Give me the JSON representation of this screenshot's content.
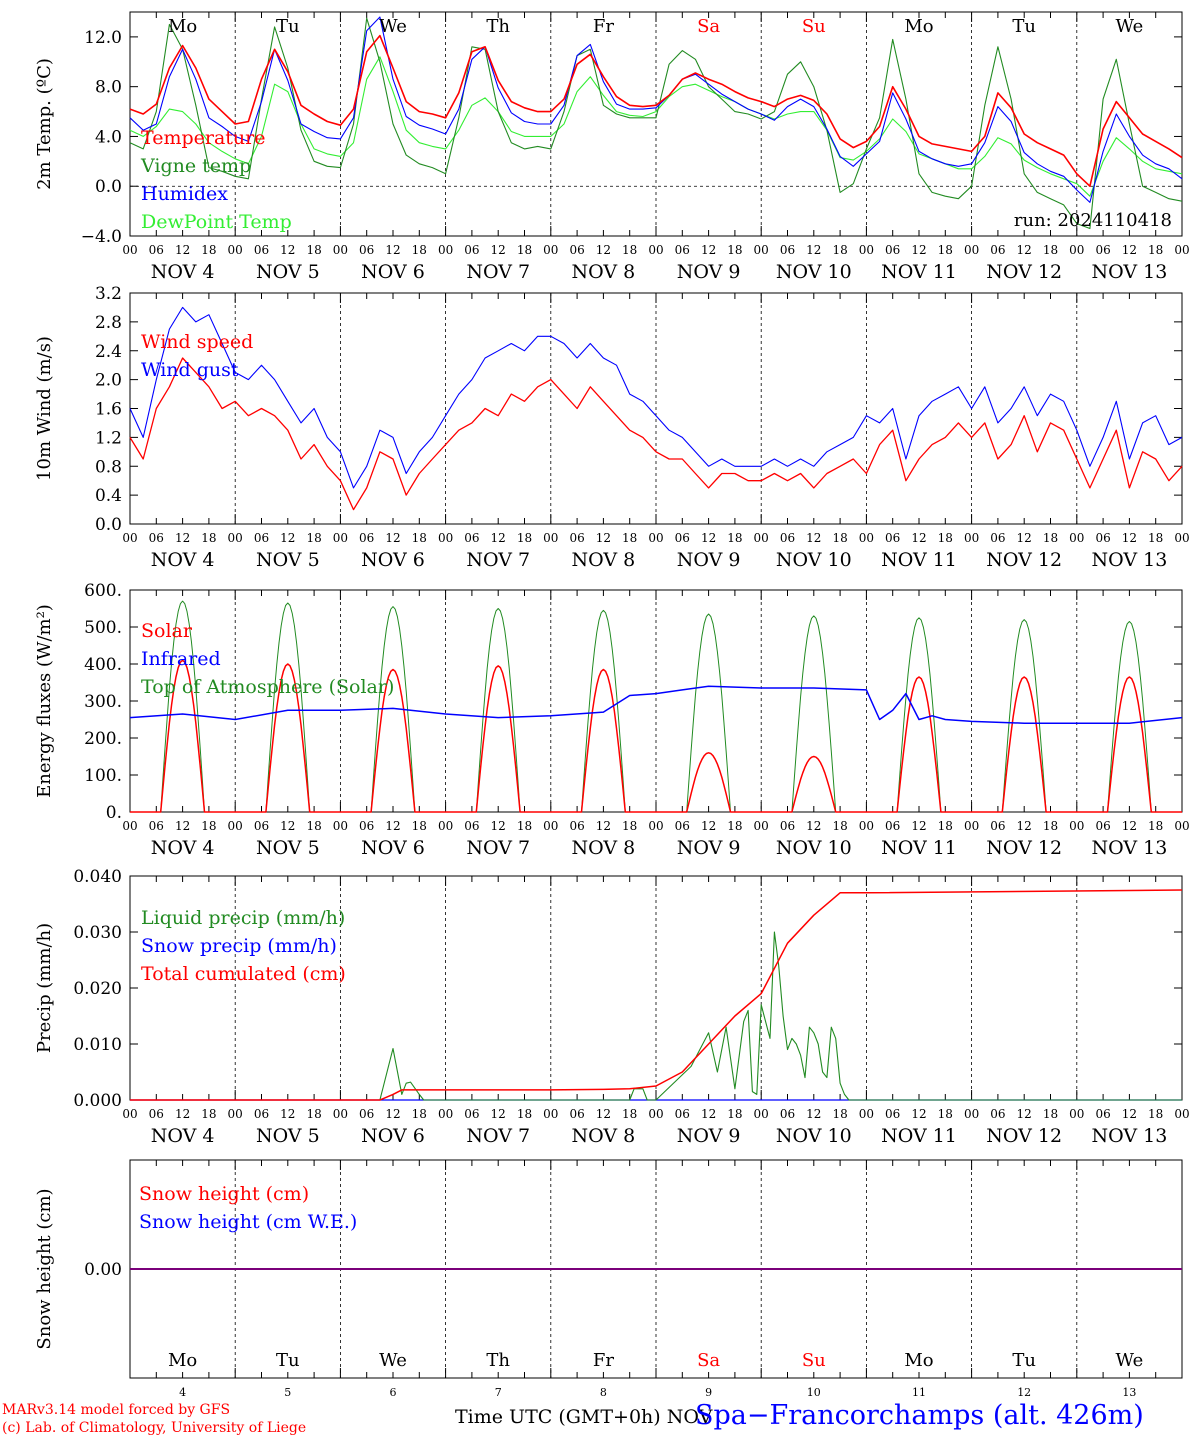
{
  "colors": {
    "red": "#ff0000",
    "green": "#228b22",
    "blue": "#0000ff",
    "light_green": "#33ee33",
    "purple": "#7a007a"
  },
  "days": [
    {
      "name": "Mo",
      "date": "NOV  4",
      "num": "4",
      "weekend": false
    },
    {
      "name": "Tu",
      "date": "NOV  5",
      "num": "5",
      "weekend": false
    },
    {
      "name": "We",
      "date": "NOV  6",
      "num": "6",
      "weekend": false
    },
    {
      "name": "Th",
      "date": "NOV  7",
      "num": "7",
      "weekend": false
    },
    {
      "name": "Fr",
      "date": "NOV  8",
      "num": "8",
      "weekend": false
    },
    {
      "name": "Sa",
      "date": "NOV  9",
      "num": "9",
      "weekend": true
    },
    {
      "name": "Su",
      "date": "NOV 10",
      "num": "10",
      "weekend": true
    },
    {
      "name": "Mo",
      "date": "NOV 11",
      "num": "11",
      "weekend": false
    },
    {
      "name": "Tu",
      "date": "NOV 12",
      "num": "12",
      "weekend": false
    },
    {
      "name": "We",
      "date": "NOV 13",
      "num": "13",
      "weekend": false
    }
  ],
  "hour_ticks": [
    "00",
    "06",
    "12",
    "18"
  ],
  "run_label": "run: 2024110418",
  "x_axis_label": "Time UTC (GMT+0h) NOV",
  "station": "Spa−Francorchamps (alt. 426m)",
  "credit_line1": "MARv3.14 model forced by GFS",
  "credit_line2": "(c) Lab. of Climatology, University of Liege",
  "chart_data": [
    {
      "type": "line",
      "ylabel": "2m Temp. (ºC)",
      "ylim": [
        -4,
        14
      ],
      "yticks": [
        "−4.0",
        "0.0",
        "4.0",
        "8.0",
        "12.0"
      ],
      "yticks_values": [
        -4,
        0,
        4,
        8,
        12
      ],
      "zero_line": true,
      "x_hours_since_nov4_00": [
        0,
        3,
        6,
        9,
        12,
        15,
        18,
        21,
        24,
        27,
        30,
        33,
        36,
        39,
        42,
        45,
        48,
        51,
        54,
        57,
        60,
        63,
        66,
        69,
        72,
        75,
        78,
        81,
        84,
        87,
        90,
        93,
        96,
        99,
        102,
        105,
        108,
        111,
        114,
        117,
        120,
        123,
        126,
        129,
        132,
        135,
        138,
        141,
        144,
        147,
        150,
        153,
        156,
        159,
        162,
        165,
        168,
        171,
        174,
        177,
        180,
        183,
        186,
        189,
        192,
        195,
        198,
        201,
        204,
        207,
        210,
        213,
        216,
        219,
        222,
        225,
        228,
        231,
        234,
        237,
        240
      ],
      "series": [
        {
          "name": "Temperature",
          "color_key": "red",
          "values": [
            6.2,
            5.8,
            6.6,
            9.5,
            11.3,
            9.5,
            7.0,
            6.0,
            5.0,
            5.2,
            8.6,
            11.0,
            9.2,
            6.5,
            5.8,
            5.2,
            4.9,
            6.2,
            10.8,
            12.1,
            9.5,
            6.8,
            6.0,
            5.8,
            5.5,
            7.5,
            10.8,
            11.2,
            8.5,
            6.8,
            6.3,
            6.0,
            6.0,
            7.0,
            9.8,
            10.6,
            8.8,
            7.2,
            6.5,
            6.4,
            6.5,
            7.3,
            8.6,
            9.1,
            8.6,
            8.2,
            7.6,
            7.1,
            6.8,
            6.4,
            7.0,
            7.3,
            6.9,
            5.8,
            3.8,
            3.1,
            3.6,
            4.8,
            8.0,
            6.2,
            4.0,
            3.4,
            3.2,
            3.0,
            2.8,
            4.0,
            7.5,
            6.3,
            4.2,
            3.5,
            3.0,
            2.5,
            1.0,
            0.0,
            4.6,
            6.8,
            5.5,
            4.2,
            3.6,
            3.0,
            2.3
          ]
        },
        {
          "name": "Vigne temp",
          "color_key": "green",
          "values": [
            3.5,
            3.0,
            6.0,
            13.0,
            11.0,
            6.5,
            1.5,
            1.2,
            0.8,
            0.6,
            7.0,
            12.8,
            9.5,
            4.5,
            2.0,
            1.6,
            1.5,
            5.0,
            13.5,
            10.0,
            5.0,
            2.5,
            1.8,
            1.5,
            1.0,
            5.5,
            11.2,
            11.0,
            6.0,
            3.5,
            3.0,
            3.2,
            3.0,
            6.0,
            10.5,
            11.0,
            6.5,
            5.8,
            5.5,
            5.5,
            5.5,
            9.8,
            10.9,
            10.2,
            8.0,
            7.0,
            6.0,
            5.8,
            5.4,
            6.0,
            9.0,
            10.0,
            8.0,
            4.5,
            -0.5,
            0.2,
            3.0,
            5.5,
            11.8,
            7.0,
            1.0,
            -0.5,
            -0.8,
            -1.0,
            0.0,
            6.5,
            11.2,
            7.0,
            1.0,
            -0.5,
            -1.0,
            -1.5,
            -3.0,
            -3.4,
            7.0,
            10.2,
            5.0,
            0.0,
            -0.5,
            -1.0,
            -1.2
          ]
        },
        {
          "name": "Humidex",
          "color_key": "blue",
          "values": [
            5.5,
            4.5,
            5.0,
            8.8,
            11.0,
            8.6,
            5.5,
            4.8,
            4.0,
            3.6,
            6.8,
            11.0,
            8.5,
            5.0,
            4.4,
            3.9,
            3.8,
            5.5,
            12.5,
            13.6,
            8.6,
            5.6,
            4.9,
            4.6,
            4.2,
            6.2,
            10.2,
            11.2,
            7.9,
            5.9,
            5.2,
            5.0,
            5.0,
            6.5,
            10.5,
            11.4,
            8.4,
            6.6,
            6.2,
            6.2,
            6.3,
            7.3,
            8.6,
            9.0,
            8.2,
            7.4,
            6.8,
            6.2,
            5.8,
            5.3,
            6.4,
            7.0,
            6.4,
            4.6,
            2.4,
            1.6,
            2.6,
            3.6,
            7.5,
            5.4,
            2.8,
            2.2,
            1.8,
            1.6,
            1.8,
            3.5,
            6.4,
            5.2,
            2.7,
            1.8,
            1.2,
            0.8,
            -0.3,
            -1.3,
            2.8,
            5.8,
            4.0,
            2.5,
            1.8,
            1.4,
            0.6
          ]
        },
        {
          "name": "DewPoint Temp",
          "color_key": "light_green",
          "values": [
            4.5,
            4.0,
            4.8,
            6.2,
            6.0,
            5.0,
            3.5,
            2.8,
            2.2,
            1.8,
            4.0,
            8.2,
            7.6,
            5.0,
            3.0,
            2.6,
            2.4,
            3.5,
            8.6,
            10.4,
            7.6,
            4.5,
            3.5,
            3.2,
            3.0,
            4.5,
            6.5,
            7.1,
            6.0,
            4.4,
            4.0,
            4.0,
            4.0,
            5.0,
            7.6,
            8.8,
            7.3,
            6.0,
            5.7,
            5.6,
            6.0,
            7.2,
            8.0,
            8.2,
            7.7,
            7.2,
            6.8,
            6.2,
            5.8,
            5.4,
            5.8,
            6.0,
            6.0,
            4.5,
            2.3,
            2.1,
            2.8,
            3.8,
            5.4,
            4.4,
            2.6,
            2.2,
            1.8,
            1.4,
            1.4,
            2.4,
            3.9,
            3.4,
            2.1,
            1.5,
            1.0,
            0.6,
            0.2,
            -0.8,
            2.0,
            3.9,
            3.0,
            2.0,
            1.4,
            1.2,
            1.0
          ]
        }
      ],
      "legend": [
        {
          "label": "Temperature",
          "color_key": "red"
        },
        {
          "label": "Vigne temp",
          "color_key": "green"
        },
        {
          "label": "Humidex",
          "color_key": "blue"
        },
        {
          "label": "DewPoint Temp",
          "color_key": "light_green"
        }
      ]
    },
    {
      "type": "line",
      "ylabel": "10m Wind (m/s)",
      "ylim": [
        0,
        3.2
      ],
      "yticks": [
        "0.0",
        "0.4",
        "0.8",
        "1.2",
        "1.6",
        "2.0",
        "2.4",
        "2.8",
        "3.2"
      ],
      "yticks_values": [
        0,
        0.4,
        0.8,
        1.2,
        1.6,
        2.0,
        2.4,
        2.8,
        3.2
      ],
      "x_hours_since_nov4_00": [
        0,
        3,
        6,
        9,
        12,
        15,
        18,
        21,
        24,
        27,
        30,
        33,
        36,
        39,
        42,
        45,
        48,
        51,
        54,
        57,
        60,
        63,
        66,
        69,
        72,
        75,
        78,
        81,
        84,
        87,
        90,
        93,
        96,
        99,
        102,
        105,
        108,
        111,
        114,
        117,
        120,
        123,
        126,
        129,
        132,
        135,
        138,
        141,
        144,
        147,
        150,
        153,
        156,
        159,
        162,
        165,
        168,
        171,
        174,
        177,
        180,
        183,
        186,
        189,
        192,
        195,
        198,
        201,
        204,
        207,
        210,
        213,
        216,
        219,
        222,
        225,
        228,
        231,
        234,
        237,
        240
      ],
      "series": [
        {
          "name": "Wind speed",
          "color_key": "red",
          "values": [
            1.2,
            0.9,
            1.6,
            1.9,
            2.3,
            2.1,
            1.9,
            1.6,
            1.7,
            1.5,
            1.6,
            1.5,
            1.3,
            0.9,
            1.1,
            0.8,
            0.6,
            0.2,
            0.5,
            1.0,
            0.9,
            0.4,
            0.7,
            0.9,
            1.1,
            1.3,
            1.4,
            1.6,
            1.5,
            1.8,
            1.7,
            1.9,
            2.0,
            1.8,
            1.6,
            1.9,
            1.7,
            1.5,
            1.3,
            1.2,
            1.0,
            0.9,
            0.9,
            0.7,
            0.5,
            0.7,
            0.7,
            0.6,
            0.6,
            0.7,
            0.6,
            0.7,
            0.5,
            0.7,
            0.8,
            0.9,
            0.7,
            1.1,
            1.3,
            0.6,
            0.9,
            1.1,
            1.2,
            1.4,
            1.2,
            1.4,
            0.9,
            1.1,
            1.5,
            1.0,
            1.4,
            1.3,
            0.9,
            0.5,
            0.9,
            1.3,
            0.5,
            1.0,
            0.9,
            0.6,
            0.8
          ]
        },
        {
          "name": "Wind gust",
          "color_key": "blue",
          "values": [
            1.6,
            1.2,
            2.0,
            2.7,
            3.0,
            2.8,
            2.9,
            2.5,
            2.1,
            2.0,
            2.2,
            2.0,
            1.7,
            1.4,
            1.6,
            1.2,
            1.0,
            0.5,
            0.8,
            1.3,
            1.2,
            0.7,
            1.0,
            1.2,
            1.5,
            1.8,
            2.0,
            2.3,
            2.4,
            2.5,
            2.4,
            2.6,
            2.6,
            2.5,
            2.3,
            2.5,
            2.3,
            2.2,
            1.8,
            1.7,
            1.5,
            1.3,
            1.2,
            1.0,
            0.8,
            0.9,
            0.8,
            0.8,
            0.8,
            0.9,
            0.8,
            0.9,
            0.8,
            1.0,
            1.1,
            1.2,
            1.5,
            1.4,
            1.6,
            0.9,
            1.5,
            1.7,
            1.8,
            1.9,
            1.6,
            1.9,
            1.4,
            1.6,
            1.9,
            1.5,
            1.8,
            1.7,
            1.3,
            0.8,
            1.2,
            1.7,
            0.9,
            1.4,
            1.5,
            1.1,
            1.2
          ]
        }
      ],
      "legend": [
        {
          "label": "Wind speed",
          "color_key": "red"
        },
        {
          "label": "Wind gust",
          "color_key": "blue"
        }
      ]
    },
    {
      "type": "line",
      "ylabel": "Energy fluxes (W/m²)",
      "ylim": [
        0,
        600
      ],
      "yticks": [
        "0.",
        "100.",
        "200.",
        "300.",
        "400.",
        "500.",
        "600."
      ],
      "yticks_values": [
        0,
        100,
        200,
        300,
        400,
        500,
        600
      ],
      "diurnal": true,
      "solar_peaks_by_day": [
        410,
        400,
        385,
        395,
        385,
        160,
        150,
        365,
        365,
        365
      ],
      "toa_peaks_by_day": [
        570,
        565,
        555,
        550,
        545,
        535,
        530,
        525,
        520,
        515
      ],
      "daylight_hours": [
        7,
        17
      ],
      "infrared_x_hours": [
        0,
        12,
        24,
        36,
        48,
        60,
        72,
        84,
        96,
        108,
        114,
        120,
        126,
        132,
        144,
        156,
        168,
        171,
        174,
        177,
        180,
        183,
        186,
        192,
        204,
        216,
        228,
        240
      ],
      "infrared_values": [
        255,
        265,
        250,
        275,
        275,
        280,
        265,
        255,
        260,
        270,
        315,
        320,
        330,
        340,
        335,
        335,
        330,
        250,
        275,
        320,
        250,
        260,
        250,
        245,
        240,
        240,
        240,
        255
      ],
      "legend": [
        {
          "label": "Solar",
          "color_key": "red"
        },
        {
          "label": "Infrared",
          "color_key": "blue"
        },
        {
          "label": "Top of Atmosphere (Solar)",
          "color_key": "green"
        }
      ]
    },
    {
      "type": "line",
      "ylabel": "Precip (mm/h)",
      "ylim": [
        0,
        0.04
      ],
      "yticks": [
        "0.000",
        "0.010",
        "0.020",
        "0.030",
        "0.040"
      ],
      "yticks_values": [
        0,
        0.01,
        0.02,
        0.03,
        0.04
      ],
      "x_hours_since_nov4_00": [
        0,
        48,
        57,
        60,
        62,
        63,
        64,
        66,
        67,
        68,
        70,
        72,
        96,
        114,
        115,
        117,
        118,
        119,
        120,
        128,
        132,
        134,
        136,
        138,
        140,
        141,
        142,
        143,
        144,
        146,
        147,
        148,
        149,
        150,
        151,
        152,
        153,
        154,
        155,
        156,
        157,
        158,
        159,
        160,
        161,
        162,
        163,
        164,
        165,
        168,
        174,
        240
      ],
      "liquid_values": [
        0,
        0,
        0,
        0.0092,
        0.001,
        0.003,
        0.0032,
        0.001,
        0,
        0,
        0,
        0,
        0,
        0,
        0.002,
        0.002,
        0,
        0,
        0,
        0.006,
        0.012,
        0.005,
        0.013,
        0.002,
        0.014,
        0.016,
        0.0015,
        0.001,
        0.017,
        0.011,
        0.03,
        0.024,
        0.015,
        0.009,
        0.011,
        0.01,
        0.008,
        0.004,
        0.013,
        0.012,
        0.01,
        0.005,
        0.004,
        0.013,
        0.011,
        0.003,
        0.001,
        0,
        0,
        0,
        0,
        0
      ],
      "snow_values": [
        0,
        0,
        0,
        0,
        0,
        0,
        0,
        0,
        0,
        0,
        0,
        0,
        0,
        0,
        0,
        0,
        0,
        0,
        0,
        0,
        0,
        0,
        0,
        0,
        0,
        0,
        0,
        0,
        0,
        0,
        0,
        0,
        0,
        0,
        0,
        0,
        0,
        0,
        0,
        0,
        0,
        0,
        0,
        0,
        0,
        0,
        0,
        0,
        0,
        0,
        0,
        0
      ],
      "total_x_hours": [
        0,
        57,
        60,
        62,
        72,
        96,
        108,
        114,
        120,
        126,
        132,
        138,
        144,
        150,
        156,
        162,
        168,
        240
      ],
      "total_values": [
        0,
        0,
        0.001,
        0.0018,
        0.0018,
        0.0018,
        0.0019,
        0.002,
        0.0025,
        0.005,
        0.01,
        0.015,
        0.019,
        0.028,
        0.033,
        0.037,
        0.037,
        0.0375
      ],
      "legend": [
        {
          "label": "Liquid precip (mm/h)",
          "color_key": "green"
        },
        {
          "label": "Snow precip (mm/h)",
          "color_key": "blue"
        },
        {
          "label": "Total cumulated (cm)",
          "color_key": "red"
        }
      ]
    },
    {
      "type": "line",
      "ylabel": "Snow height (cm)",
      "yticks": [
        "0.00"
      ],
      "yticks_values": [
        0
      ],
      "series": [
        {
          "name": "Snow height (cm)",
          "color_key": "red",
          "values": [
            0,
            0
          ]
        },
        {
          "name": "Snow height (cm W.E.)",
          "color_key": "blue",
          "values": [
            0,
            0
          ]
        }
      ],
      "x_hours_since_nov4_00": [
        0,
        240
      ],
      "legend": [
        {
          "label": "Snow height (cm)",
          "color_key": "red"
        },
        {
          "label": "Snow height (cm W.E.)",
          "color_key": "blue"
        }
      ]
    }
  ]
}
